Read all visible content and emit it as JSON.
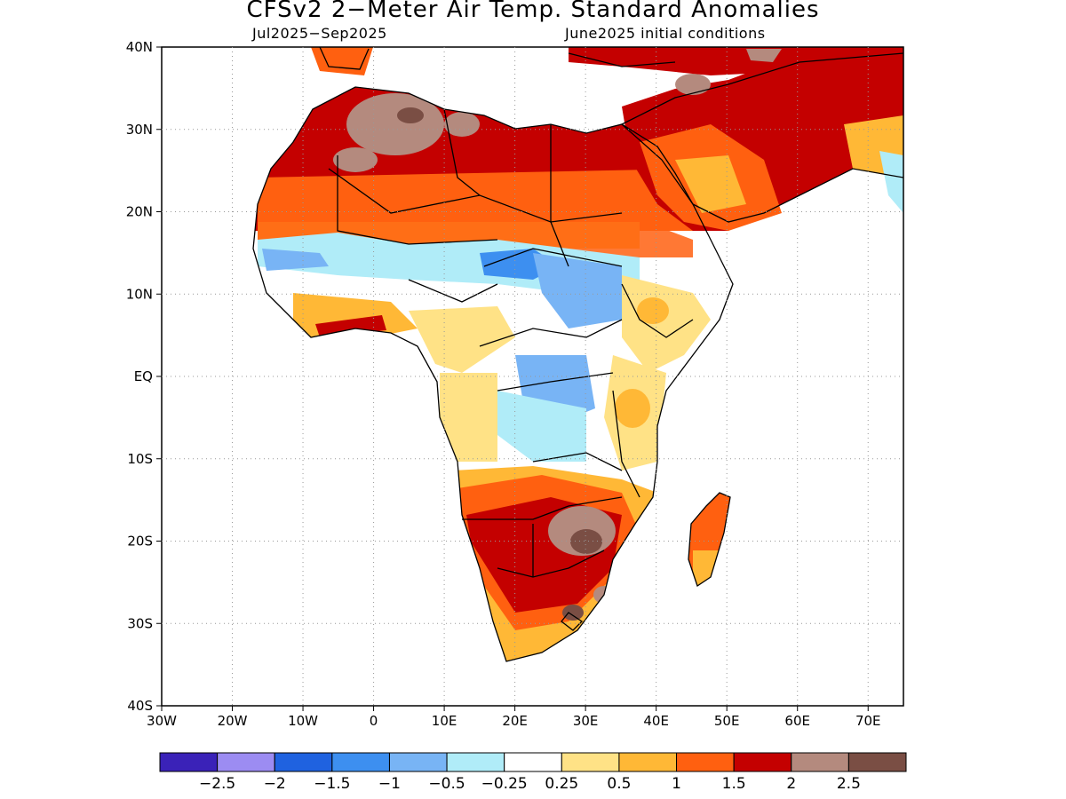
{
  "title": "CFSv2 2−Meter Air Temp. Standard Anomalies",
  "period": "Jul2025−Sep2025",
  "initial_conditions": "June2025 initial conditions",
  "lat_labels": [
    "40N",
    "30N",
    "20N",
    "10N",
    "EQ",
    "10S",
    "20S",
    "30S",
    "40S"
  ],
  "lon_labels": [
    "30W",
    "20W",
    "10W",
    "0",
    "10E",
    "20E",
    "30E",
    "40E",
    "50E",
    "60E",
    "70E"
  ],
  "colorbar": {
    "colors": [
      "#3a22b8",
      "#9c8cf2",
      "#1f62e0",
      "#3d8ff0",
      "#78b4f5",
      "#b0ecf8",
      "#ffffff",
      "#ffe286",
      "#ffb836",
      "#ff6010",
      "#c40000",
      "#b48a7e",
      "#7a4e44"
    ],
    "labels": [
      "−2.5",
      "−2",
      "−1.5",
      "−1",
      "−0.5",
      "−0.25",
      "0.25",
      "0.5",
      "1",
      "1.5",
      "2",
      "2.5"
    ]
  }
}
